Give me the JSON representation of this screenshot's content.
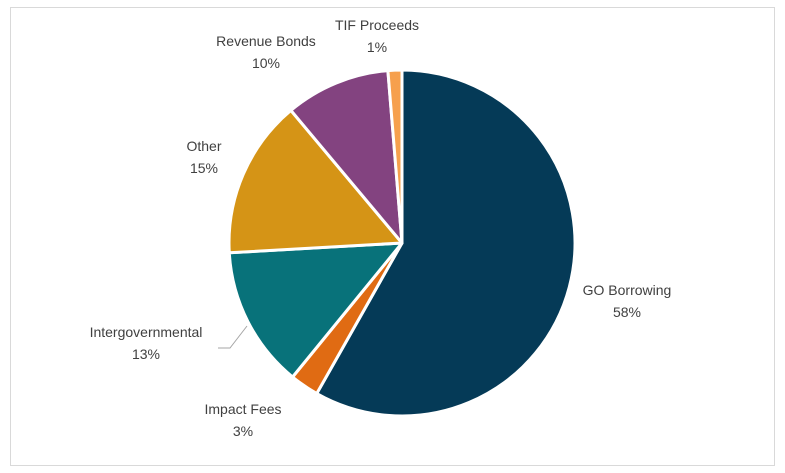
{
  "chart_data": {
    "type": "pie",
    "title": "",
    "slices": [
      {
        "label": "GO Borrowing",
        "percent_label": "58%",
        "value": 58.2,
        "color": "#053a57"
      },
      {
        "label": "Impact Fees",
        "percent_label": "3%",
        "value": 2.7,
        "color": "#e06b13"
      },
      {
        "label": "Intergovernmental",
        "percent_label": "13%",
        "value": 13.2,
        "color": "#08727a"
      },
      {
        "label": "Other",
        "percent_label": "15%",
        "value": 14.8,
        "color": "#d59416"
      },
      {
        "label": "Revenue Bonds",
        "percent_label": "10%",
        "value": 9.8,
        "color": "#834380"
      },
      {
        "label": "TIF Proceeds",
        "percent_label": "1%",
        "value": 1.3,
        "color": "#f6a04d"
      }
    ],
    "start_angle_deg": 0,
    "direction": "clockwise",
    "legend": "none"
  }
}
